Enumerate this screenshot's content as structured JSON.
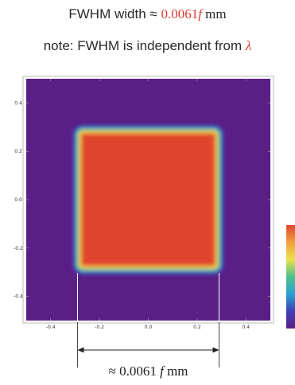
{
  "header": {
    "line1_prefix": "FWHM width ≈ ",
    "line1_value": "0.0061",
    "line1_var": "f",
    "line1_unit": " mm",
    "line2_prefix": "note: FWHM is independent from ",
    "line2_symbol": "λ"
  },
  "chart_data": {
    "type": "heatmap",
    "title": "",
    "xlabel": "",
    "ylabel": "",
    "xlim": [
      -0.5,
      0.5
    ],
    "ylim": [
      -0.5,
      0.5
    ],
    "x_ticks": [
      -0.4,
      -0.2,
      0.0,
      0.2,
      0.4
    ],
    "x_tick_labels": [
      "-0.4",
      "-0.2",
      "0.0",
      "0.2",
      "0.4"
    ],
    "y_ticks": [
      -0.4,
      -0.2,
      0.0,
      0.2,
      0.4
    ],
    "y_tick_labels": [
      "-0.4",
      "-0.2",
      "0.0",
      "0.2",
      "0.4"
    ],
    "colormap": [
      "#5a1f86",
      "#3f3fb5",
      "#2aa0d6",
      "#4cc28a",
      "#e9e14a",
      "#f2a13c",
      "#e0452f"
    ],
    "background_color": "#5a1f86",
    "square": {
      "x_range": [
        -0.29,
        0.29
      ],
      "y_range": [
        -0.29,
        0.29
      ],
      "edge_width": 0.035,
      "inner_color": "#e0452f"
    },
    "fwhm_marker": {
      "x_from": -0.29,
      "x_to": 0.29,
      "label_prefix": "≈ 0.0061 ",
      "label_var": "f",
      "label_unit": " mm"
    },
    "grid": false,
    "colorbar": "right"
  }
}
